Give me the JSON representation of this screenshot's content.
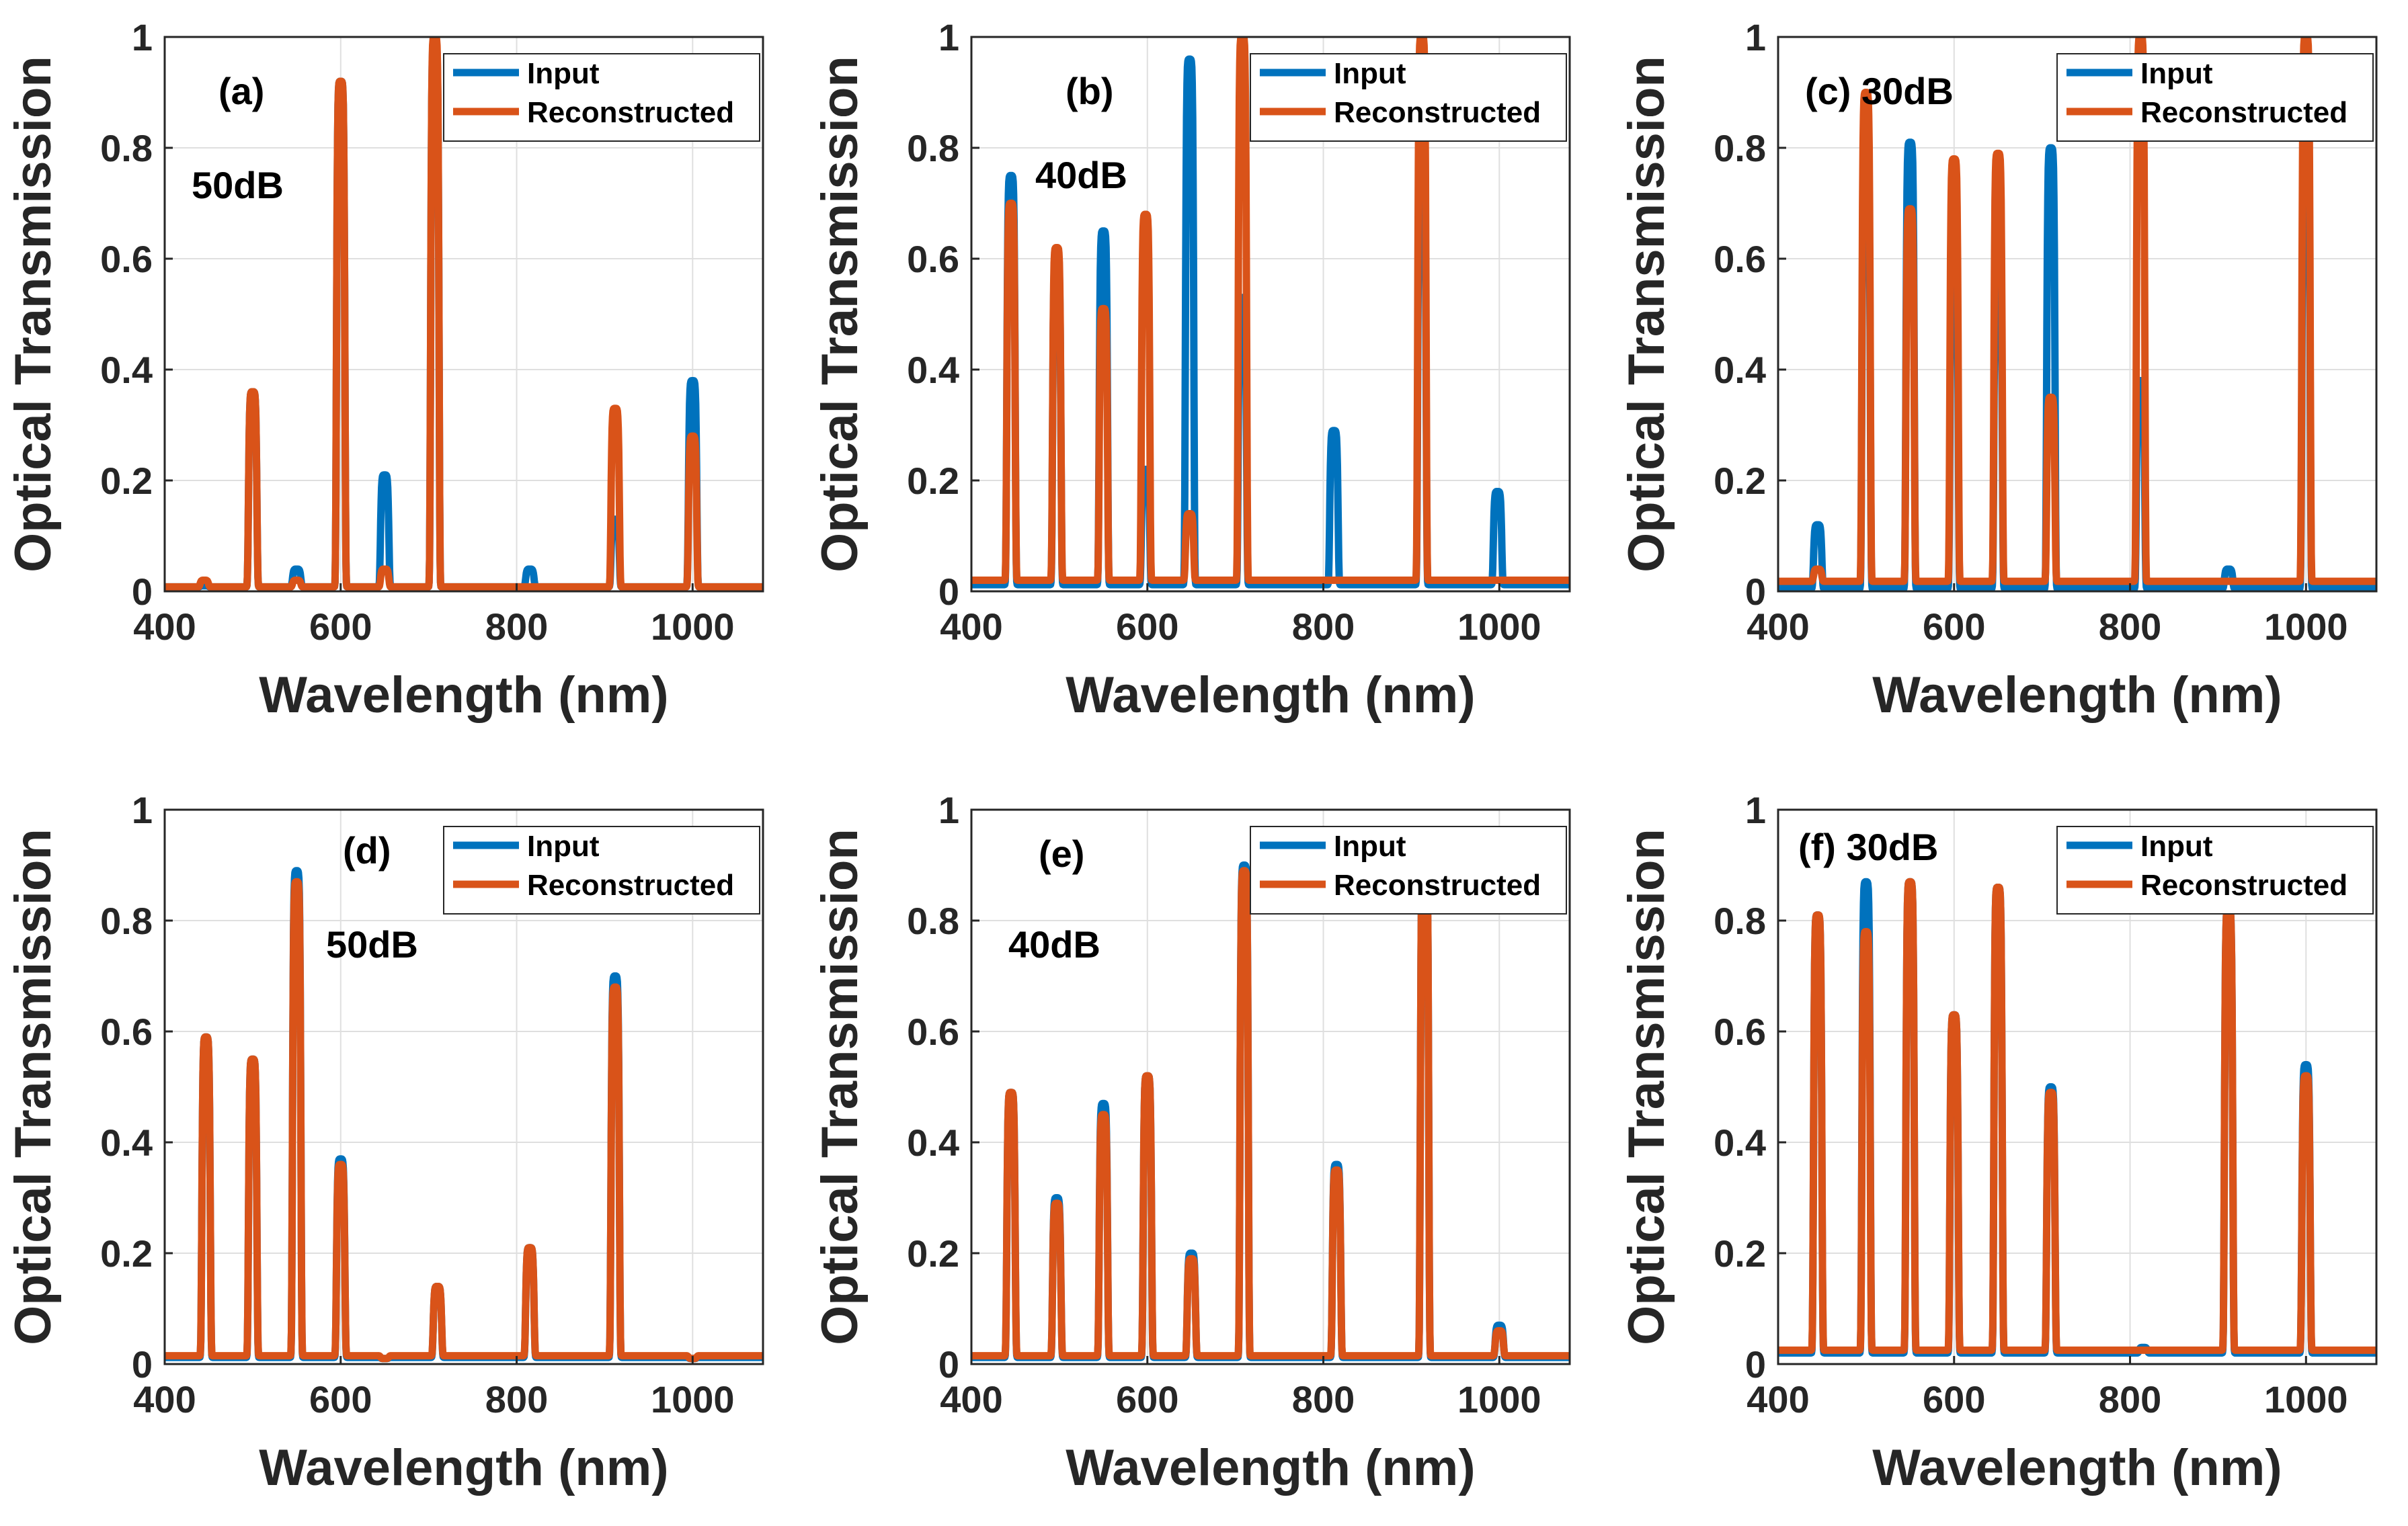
{
  "chart_data": [
    {
      "id": "a",
      "type": "line",
      "panel_label": "(a)",
      "annotation": "50dB",
      "xlabel": "Wavelength (nm)",
      "ylabel": "Optical Transmission",
      "xlim": [
        400,
        1080
      ],
      "ylim": [
        0,
        1
      ],
      "xticks": [
        400,
        600,
        800,
        1000
      ],
      "yticks": [
        0,
        0.2,
        0.4,
        0.6,
        0.8,
        1
      ],
      "grid": true,
      "legend_location": "top-right",
      "baseline": {
        "Input": 0.008,
        "Reconstructed": 0.008
      },
      "peaks": [
        {
          "x": 445,
          "Input": 0.01,
          "Reconstructed": 0.02
        },
        {
          "x": 500,
          "Input": 0.36,
          "Reconstructed": 0.36
        },
        {
          "x": 550,
          "Input": 0.04,
          "Reconstructed": 0.02
        },
        {
          "x": 600,
          "Input": 0.92,
          "Reconstructed": 0.92
        },
        {
          "x": 650,
          "Input": 0.21,
          "Reconstructed": 0.04
        },
        {
          "x": 707,
          "Input": 0.99,
          "Reconstructed": 1.0
        },
        {
          "x": 815,
          "Input": 0.04,
          "Reconstructed": 0.0
        },
        {
          "x": 912,
          "Input": 0.13,
          "Reconstructed": 0.33
        },
        {
          "x": 1000,
          "Input": 0.38,
          "Reconstructed": 0.28
        }
      ],
      "series": [
        {
          "name": "Input",
          "color": "#0072BD"
        },
        {
          "name": "Reconstructed",
          "color": "#D95319"
        }
      ]
    },
    {
      "id": "b",
      "type": "line",
      "panel_label": "(b)",
      "annotation": "40dB",
      "xlabel": "Wavelength (nm)",
      "ylabel": "Optical Transmission",
      "xlim": [
        400,
        1080
      ],
      "ylim": [
        0,
        1
      ],
      "xticks": [
        400,
        600,
        800,
        1000
      ],
      "yticks": [
        0,
        0.2,
        0.4,
        0.6,
        0.8,
        1
      ],
      "grid": true,
      "legend_location": "top-right",
      "baseline": {
        "Input": 0.012,
        "Reconstructed": 0.02
      },
      "peaks": [
        {
          "x": 445,
          "Input": 0.75,
          "Reconstructed": 0.7
        },
        {
          "x": 497,
          "Input": 0.6,
          "Reconstructed": 0.62
        },
        {
          "x": 550,
          "Input": 0.65,
          "Reconstructed": 0.51
        },
        {
          "x": 598,
          "Input": 0.22,
          "Reconstructed": 0.68
        },
        {
          "x": 648,
          "Input": 0.96,
          "Reconstructed": 0.14
        },
        {
          "x": 708,
          "Input": 0.53,
          "Reconstructed": 1.0
        },
        {
          "x": 812,
          "Input": 0.29,
          "Reconstructed": 0.0
        },
        {
          "x": 912,
          "Input": 0.8,
          "Reconstructed": 1.0
        },
        {
          "x": 998,
          "Input": 0.18,
          "Reconstructed": 0.0
        }
      ],
      "series": [
        {
          "name": "Input",
          "color": "#0072BD"
        },
        {
          "name": "Reconstructed",
          "color": "#D95319"
        }
      ]
    },
    {
      "id": "c",
      "type": "line",
      "panel_label": "(c) 30dB",
      "annotation": "",
      "xlabel": "Wavelength (nm)",
      "ylabel": "Optical Transmission",
      "xlim": [
        400,
        1080
      ],
      "ylim": [
        0,
        1
      ],
      "xticks": [
        400,
        600,
        800,
        1000
      ],
      "yticks": [
        0,
        0.2,
        0.4,
        0.6,
        0.8,
        1
      ],
      "grid": true,
      "legend_location": "top-right",
      "baseline": {
        "Input": 0.005,
        "Reconstructed": 0.018
      },
      "peaks": [
        {
          "x": 445,
          "Input": 0.12,
          "Reconstructed": 0.04
        },
        {
          "x": 500,
          "Input": 0.8,
          "Reconstructed": 0.9
        },
        {
          "x": 550,
          "Input": 0.81,
          "Reconstructed": 0.69
        },
        {
          "x": 600,
          "Input": 0.6,
          "Reconstructed": 0.78
        },
        {
          "x": 650,
          "Input": 0.6,
          "Reconstructed": 0.79
        },
        {
          "x": 710,
          "Input": 0.8,
          "Reconstructed": 0.35
        },
        {
          "x": 812,
          "Input": 0.38,
          "Reconstructed": 1.0
        },
        {
          "x": 912,
          "Input": 0.04,
          "Reconstructed": 0.0
        },
        {
          "x": 1000,
          "Input": 0.8,
          "Reconstructed": 1.0
        }
      ],
      "series": [
        {
          "name": "Input",
          "color": "#0072BD"
        },
        {
          "name": "Reconstructed",
          "color": "#D95319"
        }
      ]
    },
    {
      "id": "d",
      "type": "line",
      "panel_label": "(d)",
      "annotation": "50dB",
      "xlabel": "Wavelength (nm)",
      "ylabel": "Optical Transmission",
      "xlim": [
        400,
        1080
      ],
      "ylim": [
        0,
        1
      ],
      "xticks": [
        400,
        600,
        800,
        1000
      ],
      "yticks": [
        0,
        0.2,
        0.4,
        0.6,
        0.8,
        1
      ],
      "grid": true,
      "legend_location": "top-right",
      "baseline": {
        "Input": 0.012,
        "Reconstructed": 0.015
      },
      "peaks": [
        {
          "x": 447,
          "Input": 0.59,
          "Reconstructed": 0.59
        },
        {
          "x": 500,
          "Input": 0.55,
          "Reconstructed": 0.55
        },
        {
          "x": 550,
          "Input": 0.89,
          "Reconstructed": 0.87
        },
        {
          "x": 600,
          "Input": 0.37,
          "Reconstructed": 0.36
        },
        {
          "x": 650,
          "Input": 0.01,
          "Reconstructed": 0.01
        },
        {
          "x": 710,
          "Input": 0.14,
          "Reconstructed": 0.14
        },
        {
          "x": 815,
          "Input": 0.21,
          "Reconstructed": 0.21
        },
        {
          "x": 912,
          "Input": 0.7,
          "Reconstructed": 0.68
        },
        {
          "x": 1000,
          "Input": 0.01,
          "Reconstructed": 0.01
        }
      ],
      "series": [
        {
          "name": "Input",
          "color": "#0072BD"
        },
        {
          "name": "Reconstructed",
          "color": "#D95319"
        }
      ]
    },
    {
      "id": "e",
      "type": "line",
      "panel_label": "(e)",
      "annotation": "40dB",
      "xlabel": "Wavelength (nm)",
      "ylabel": "Optical Transmission",
      "xlim": [
        400,
        1080
      ],
      "ylim": [
        0,
        1
      ],
      "xticks": [
        400,
        600,
        800,
        1000
      ],
      "yticks": [
        0,
        0.2,
        0.4,
        0.6,
        0.8,
        1
      ],
      "grid": true,
      "legend_location": "top-right",
      "baseline": {
        "Input": 0.012,
        "Reconstructed": 0.015
      },
      "peaks": [
        {
          "x": 445,
          "Input": 0.49,
          "Reconstructed": 0.49
        },
        {
          "x": 497,
          "Input": 0.3,
          "Reconstructed": 0.29
        },
        {
          "x": 550,
          "Input": 0.47,
          "Reconstructed": 0.45
        },
        {
          "x": 600,
          "Input": 0.52,
          "Reconstructed": 0.52
        },
        {
          "x": 650,
          "Input": 0.2,
          "Reconstructed": 0.19
        },
        {
          "x": 710,
          "Input": 0.9,
          "Reconstructed": 0.89
        },
        {
          "x": 815,
          "Input": 0.36,
          "Reconstructed": 0.35
        },
        {
          "x": 915,
          "Input": 0.95,
          "Reconstructed": 0.95
        },
        {
          "x": 1000,
          "Input": 0.07,
          "Reconstructed": 0.06
        }
      ],
      "series": [
        {
          "name": "Input",
          "color": "#0072BD"
        },
        {
          "name": "Reconstructed",
          "color": "#D95319"
        }
      ]
    },
    {
      "id": "f",
      "type": "line",
      "panel_label": "(f) 30dB",
      "annotation": "",
      "xlabel": "Wavelength (nm)",
      "ylabel": "Optical Transmission",
      "xlim": [
        400,
        1080
      ],
      "ylim": [
        0,
        1
      ],
      "xticks": [
        400,
        600,
        800,
        1000
      ],
      "yticks": [
        0,
        0.2,
        0.4,
        0.6,
        0.8,
        1
      ],
      "grid": true,
      "legend_location": "top-right",
      "baseline": {
        "Input": 0.02,
        "Reconstructed": 0.025
      },
      "peaks": [
        {
          "x": 445,
          "Input": 0.81,
          "Reconstructed": 0.81
        },
        {
          "x": 500,
          "Input": 0.87,
          "Reconstructed": 0.78
        },
        {
          "x": 550,
          "Input": 0.87,
          "Reconstructed": 0.87
        },
        {
          "x": 600,
          "Input": 0.63,
          "Reconstructed": 0.63
        },
        {
          "x": 650,
          "Input": 0.86,
          "Reconstructed": 0.86
        },
        {
          "x": 710,
          "Input": 0.5,
          "Reconstructed": 0.49
        },
        {
          "x": 815,
          "Input": 0.03,
          "Reconstructed": 0.0
        },
        {
          "x": 912,
          "Input": 0.82,
          "Reconstructed": 0.82
        },
        {
          "x": 1000,
          "Input": 0.54,
          "Reconstructed": 0.52
        }
      ],
      "series": [
        {
          "name": "Input",
          "color": "#0072BD"
        },
        {
          "name": "Reconstructed",
          "color": "#D95319"
        }
      ]
    }
  ]
}
